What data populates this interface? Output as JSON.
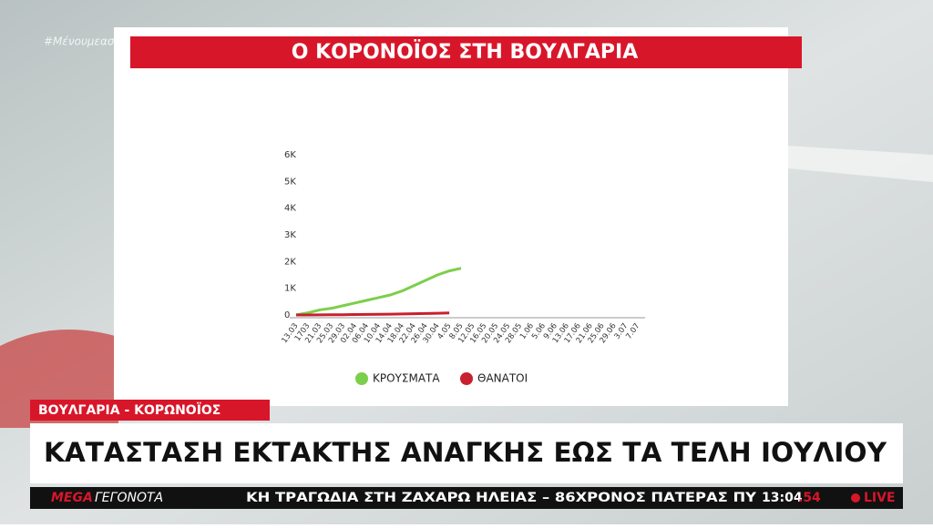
{
  "chart_data": {
    "type": "line",
    "title": "Ο ΚΟΡΟΝΟΪΟΣ ΣΤΗ ΒΟΥΛΓΑΡΙΑ",
    "categories": [
      "13.03",
      "1703",
      "21.03",
      "25.03",
      "29.03",
      "02.04",
      "06.04",
      "10.04",
      "14.04",
      "18.04",
      "22.04",
      "26.04",
      "30.04",
      "4.05",
      "8.05",
      "12.05",
      "16.05",
      "20.05",
      "24.05",
      "28.05",
      "1.06",
      "5.06",
      "9.06",
      "13.06",
      "17.06",
      "21.06",
      "25.06",
      "29.06",
      "3.07",
      "7.07"
    ],
    "series": [
      {
        "name": "ΚΡΟΥΣΜΑΤΑ",
        "color": "#7ccf4a",
        "values": [
          7,
          80,
          190,
          250,
          350,
          450,
          550,
          650,
          750,
          900,
          1100,
          1300,
          1500,
          1650,
          1750,
          null,
          null,
          null,
          null,
          null,
          null,
          null,
          null,
          null,
          null,
          null,
          null,
          null,
          null,
          null
        ]
      },
      {
        "name": "ΘΑΝΑΤΟΙ",
        "color": "#c8202e",
        "values": [
          0,
          2,
          5,
          8,
          10,
          15,
          20,
          25,
          30,
          40,
          45,
          55,
          65,
          75,
          null,
          null,
          null,
          null,
          null,
          null,
          null,
          null,
          null,
          null,
          null,
          null,
          null,
          null,
          null,
          null
        ]
      }
    ],
    "ylim": [
      0,
      6000
    ],
    "yticks": [
      0,
      {
        "value": 1000,
        "label": "1K"
      },
      {
        "value": 2000,
        "label": "2K"
      },
      {
        "value": 3000,
        "label": "3K"
      },
      {
        "value": 4000,
        "label": "4K"
      },
      {
        "value": 5000,
        "label": "5K"
      },
      {
        "value": 6000,
        "label": "6K"
      }
    ]
  },
  "broadcast": {
    "hashtag": "#Μένουμεασφαλείς",
    "tag": "ΒΟΥΛΓΑΡΙΑ - ΚΟΡΩΝΟΪΟΣ",
    "headline": "ΚΑΤΑΣΤΑΣΗ ΕΚΤΑΚΤΗΣ ΑΝΑΓΚΗΣ ΕΩΣ ΤΑ ΤΕΛΗ ΙΟΥΛΙΟΥ",
    "logo": "MEGA",
    "logo_section": "ΓΕΓΟΝΟΤΑ",
    "ticker": "ΚΗ ΤΡΑΓΩΔΙΑ ΣΤΗ ΖΑΧΑΡΩ ΗΛΕΙΑΣ – 86ΧΡΟΝΟΣ ΠΑΤΕΡΑΣ ΠΥ",
    "time": "13:04",
    "seconds": ".54",
    "live": "LIVE"
  }
}
